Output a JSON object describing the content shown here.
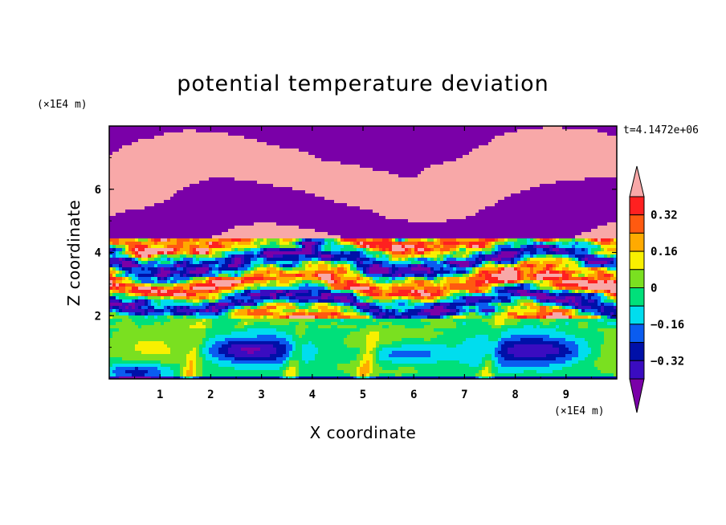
{
  "chart_data": {
    "type": "heatmap",
    "title": "potential temperature deviation",
    "xlabel": "X coordinate",
    "ylabel": "Z coordinate",
    "x_unit": "(×1E4 m)",
    "y_unit": "(×1E4 m)",
    "time_label": "t=4.1472e+06",
    "xlim": [
      0,
      10
    ],
    "ylim": [
      0,
      8
    ],
    "x_ticks": [
      "1",
      "2",
      "3",
      "4",
      "5",
      "6",
      "7",
      "8",
      "9"
    ],
    "y_ticks": [
      "2",
      "4",
      "6"
    ],
    "colorbar": {
      "levels": [
        -0.4,
        -0.32,
        -0.24,
        -0.16,
        -0.08,
        0,
        0.08,
        0.16,
        0.24,
        0.32,
        0.4
      ],
      "labels": [
        "0.32",
        "0.16",
        "0",
        "−0.16",
        "−0.32"
      ],
      "colors": [
        "#7a00a8",
        "#3a0cc0",
        "#0010a8",
        "#0a5cf0",
        "#00ddee",
        "#00e07a",
        "#7ae020",
        "#f8f000",
        "#ffaa00",
        "#ff5a10",
        "#ff2020",
        "#f8a8a8"
      ],
      "extend": "both"
    },
    "layers": [
      {
        "z_range": [
          7.3,
          8
        ],
        "pattern": "alternating bands",
        "values": [
          0.4,
          -0.4
        ]
      },
      {
        "z_range": [
          4.5,
          7.3
        ],
        "pattern": "large bands",
        "values": [
          0.4,
          -0.4
        ]
      },
      {
        "z_range": [
          2,
          4.5
        ],
        "pattern": "turbulent mixed",
        "values": [
          -0.4,
          0.4
        ]
      },
      {
        "z_range": [
          0,
          2
        ],
        "pattern": "convective cells",
        "values": [
          -0.08,
          0.08
        ]
      }
    ]
  }
}
